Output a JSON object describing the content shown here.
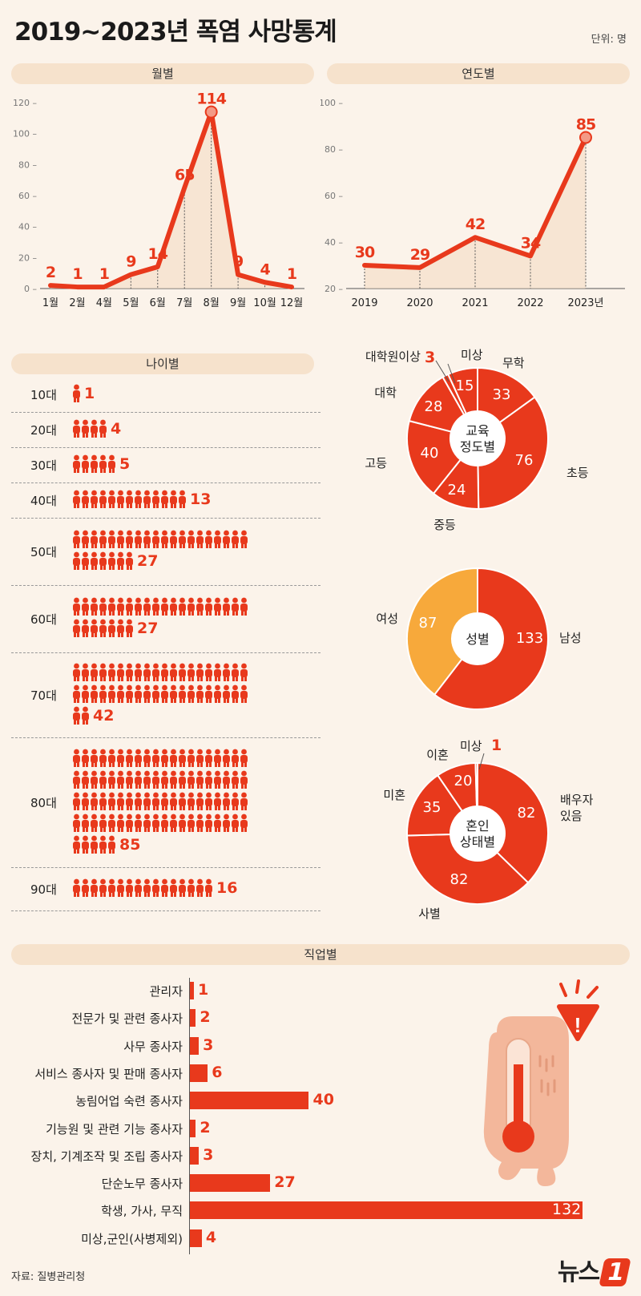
{
  "title": "2019~2023년 폭염 사망통계",
  "unit": "단위: 명",
  "source": "자료: 질병관리청",
  "logo": "뉴스",
  "logo_mark": "1",
  "colors": {
    "accent": "#e8391c",
    "female": "#f7a93b",
    "pill": "#f6e2cc",
    "bg": "#fbf3ea"
  },
  "chart_data": [
    {
      "type": "line",
      "title": "월별",
      "categories": [
        "1월",
        "2월",
        "4월",
        "5월",
        "6월",
        "7월",
        "8월",
        "9월",
        "10월",
        "12월"
      ],
      "values": [
        2,
        1,
        1,
        9,
        14,
        65,
        114,
        9,
        4,
        1
      ],
      "ylim": [
        0,
        120
      ],
      "yticks": [
        0,
        20,
        40,
        60,
        80,
        100,
        120
      ]
    },
    {
      "type": "line",
      "title": "연도별",
      "categories": [
        "2019",
        "2020",
        "2021",
        "2022",
        "2023년"
      ],
      "values": [
        30,
        29,
        42,
        34,
        85
      ],
      "ylim": [
        20,
        100
      ],
      "yticks": [
        20,
        40,
        60,
        80,
        100
      ]
    },
    {
      "type": "bar",
      "title": "나이별",
      "categories": [
        "10대",
        "20대",
        "30대",
        "40대",
        "50대",
        "60대",
        "70대",
        "80대",
        "90대"
      ],
      "values": [
        1,
        4,
        5,
        13,
        27,
        27,
        42,
        85,
        16
      ]
    },
    {
      "type": "pie",
      "title": "교육 정도별",
      "center_lines": [
        "교육",
        "정도별"
      ],
      "categories": [
        "무학",
        "초등",
        "중등",
        "고등",
        "대학",
        "대학원이상",
        "미상"
      ],
      "values": [
        33,
        76,
        24,
        40,
        28,
        3,
        15
      ]
    },
    {
      "type": "pie",
      "title": "성별",
      "center_lines": [
        "성별"
      ],
      "categories": [
        "남성",
        "여성"
      ],
      "values": [
        133,
        87
      ]
    },
    {
      "type": "pie",
      "title": "혼인 상태별",
      "center_lines": [
        "혼인",
        "상태별"
      ],
      "categories": [
        "배우자 있음",
        "사별",
        "미혼",
        "이혼",
        "미상"
      ],
      "values": [
        82,
        82,
        35,
        20,
        1
      ]
    },
    {
      "type": "bar",
      "title": "직업별",
      "categories": [
        "관리자",
        "전문가 및 관련 종사자",
        "사무 종사자",
        "서비스 종사자 및 판매 종사자",
        "농림어업 숙련 종사자",
        "기능원 및 관련 기능 종사자",
        "장치, 기계조작 및 조립 종사자",
        "단순노무 종사자",
        "학생, 가사, 무직",
        "미상,군인(사병제외)"
      ],
      "values": [
        1,
        2,
        3,
        6,
        40,
        2,
        3,
        27,
        132,
        4
      ]
    }
  ]
}
